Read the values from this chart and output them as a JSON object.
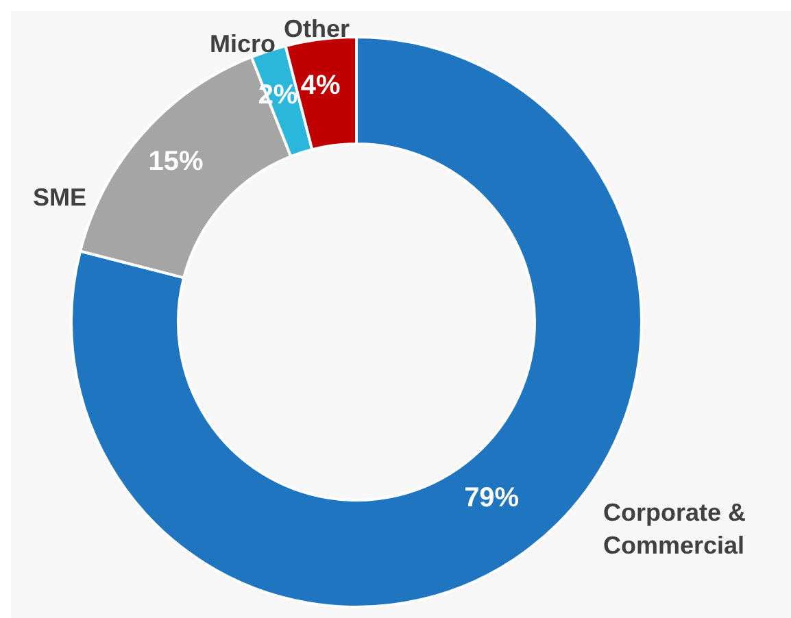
{
  "chart_data": {
    "type": "donut",
    "categories": [
      "Corporate & Commercial",
      "SME",
      "Micro",
      "Other"
    ],
    "values": [
      79,
      15,
      2,
      4
    ],
    "value_labels": [
      "79%",
      "15%",
      "2%",
      "4%"
    ],
    "colors": [
      "#1f75c0",
      "#a5a5a5",
      "#2bb7dc",
      "#c00000"
    ],
    "legend": false
  }
}
